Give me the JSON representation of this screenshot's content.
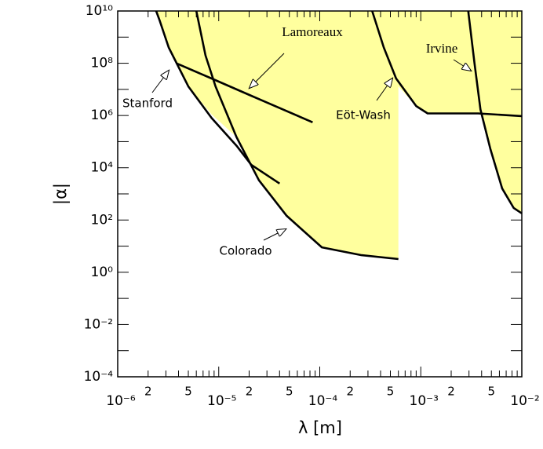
{
  "chart_data": {
    "type": "line",
    "xlabel": "λ  [m]",
    "ylabel": "|α|",
    "log_x": true,
    "log_y": true,
    "xlim": [
      1e-06,
      0.01
    ],
    "ylim": [
      0.0001,
      10000000000
    ],
    "xticks": [
      {
        "value": 1e-06,
        "label": "10⁻⁶"
      },
      {
        "value": 2e-06,
        "label": "2"
      },
      {
        "value": 5e-06,
        "label": "5"
      },
      {
        "value": 1e-05,
        "label": "10⁻⁵"
      },
      {
        "value": 2e-05,
        "label": "2"
      },
      {
        "value": 5e-05,
        "label": "5"
      },
      {
        "value": 0.0001,
        "label": "10⁻⁴"
      },
      {
        "value": 0.0002,
        "label": "2"
      },
      {
        "value": 0.0005,
        "label": "5"
      },
      {
        "value": 0.001,
        "label": "10⁻³"
      },
      {
        "value": 0.002,
        "label": "2"
      },
      {
        "value": 0.005,
        "label": "5"
      },
      {
        "value": 0.01,
        "label": "10⁻²"
      }
    ],
    "xminor": [
      3e-06,
      4e-06,
      6e-06,
      7e-06,
      8e-06,
      9e-06,
      3e-05,
      4e-05,
      6e-05,
      7e-05,
      8e-05,
      9e-05,
      0.0003,
      0.0004,
      0.0006,
      0.0007,
      0.0008,
      0.0009,
      0.003,
      0.004,
      0.006,
      0.007,
      0.008,
      0.009
    ],
    "yticks": [
      {
        "value": 10000000000,
        "label": "10¹⁰"
      },
      {
        "value": 100000000,
        "label": "10⁸"
      },
      {
        "value": 1000000,
        "label": "10⁶"
      },
      {
        "value": 10000,
        "label": "10⁴"
      },
      {
        "value": 100,
        "label": "10²"
      },
      {
        "value": 1,
        "label": "10⁰"
      },
      {
        "value": 0.01,
        "label": "10⁻²"
      },
      {
        "value": 0.0001,
        "label": "10⁻⁴"
      }
    ],
    "yminor": [
      1000000000,
      10000000,
      100000,
      1000,
      10,
      0.1,
      0.001
    ],
    "line_color": "#000000",
    "region_color": "#ffff9e",
    "regions": [
      {
        "x": [
          2.4e-06,
          2.6e-06,
          3.2e-06,
          5e-06,
          8.5e-06,
          1.5e-05,
          2.5e-05,
          4.7e-05,
          0.000105,
          0.00026,
          0.0006,
          0.0006,
          0.0009,
          0.00117,
          0.0037,
          0.01,
          0.01
        ],
        "values": [
          10000000000,
          4400000000,
          400000000,
          13000000,
          1100000,
          150000,
          3300,
          145,
          9,
          4.5,
          3.2,
          13000000,
          2300000,
          1200000,
          1200000,
          950000,
          10000000000
        ]
      },
      {
        "x": [
          0.0041,
          0.0049,
          0.0064,
          0.0083,
          0.01,
          0.01
        ],
        "values": [
          1200000,
          50000,
          1600,
          290,
          180,
          950000
        ]
      }
    ],
    "series": [
      {
        "name": "Stanford",
        "x": [
          2.4e-06,
          2.6e-06,
          3.2e-06,
          5e-06,
          8.5e-06,
          1.5e-05,
          2.1e-05,
          4e-05
        ],
        "values": [
          10000000000,
          4400000000,
          400000000,
          13000000,
          800000,
          70000,
          13000,
          2500
        ]
      },
      {
        "name": "Lamoreaux",
        "x": [
          3.8e-06,
          8.5e-06,
          2.1e-05,
          8.5e-05
        ],
        "values": [
          100000000,
          26000000,
          5700000,
          550000
        ]
      },
      {
        "name": "Colorado",
        "x": [
          6e-06,
          7.4e-06,
          9.3e-06,
          1.5e-05,
          2.5e-05,
          4.7e-05,
          0.000105,
          0.00026,
          0.0006
        ],
        "values": [
          10000000000,
          200000000,
          13000000,
          150000,
          3300,
          145,
          9,
          4.5,
          3.2
        ]
      },
      {
        "name": "Eöt-Wash",
        "x": [
          0.00033,
          0.00043,
          0.00057,
          0.0009,
          0.00117,
          0.0037,
          0.01
        ],
        "values": [
          10000000000,
          400000000,
          26000000,
          2300000,
          1200000,
          1200000,
          950000
        ]
      },
      {
        "name": "Irvine",
        "x": [
          0.00295,
          0.0034,
          0.0039,
          0.0049,
          0.0064,
          0.0083,
          0.01
        ],
        "values": [
          10000000000,
          100000000,
          1700000,
          50000,
          1600,
          290,
          180
        ]
      }
    ]
  }
}
